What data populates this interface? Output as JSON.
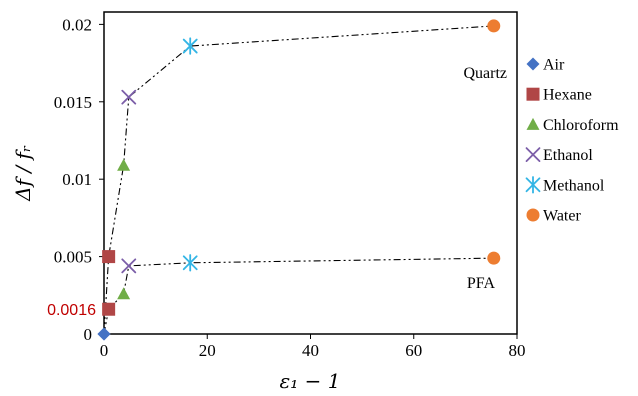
{
  "chart_data": {
    "type": "scatter",
    "title": "",
    "xlabel": "ε₁ − 1",
    "ylabel": "Δf / fᵣ",
    "xlim": [
      0,
      80
    ],
    "ylim": [
      0,
      0.022
    ],
    "xticks": [
      0,
      20,
      40,
      60,
      80
    ],
    "xtick_labels": [
      "0",
      "20",
      "40",
      "60",
      "80"
    ],
    "yticks": [
      0,
      0.005,
      0.01,
      0.015,
      0.02
    ],
    "ytick_labels": [
      "0",
      "0.005",
      "0.01",
      "0.015",
      "0.02"
    ],
    "grid": false,
    "legend_position": "right",
    "materials": [
      {
        "name": "Air",
        "x": 0,
        "marker": "diamond",
        "color": "#4472C4"
      },
      {
        "name": "Hexane",
        "x": 0.9,
        "marker": "square",
        "color": "#B04646"
      },
      {
        "name": "Chloroform",
        "x": 3.8,
        "marker": "triangle",
        "color": "#70AD47"
      },
      {
        "name": "Ethanol",
        "x": 4.8,
        "marker": "x",
        "color": "#7B5EA8"
      },
      {
        "name": "Methanol",
        "x": 16.7,
        "marker": "asterisk",
        "color": "#33B5E5"
      },
      {
        "name": "Water",
        "x": 75.5,
        "marker": "circle",
        "color": "#ED7D31"
      }
    ],
    "series": [
      {
        "name": "Quartz",
        "values": [
          0,
          0.005,
          0.0109,
          0.0153,
          0.0186,
          0.0199
        ]
      },
      {
        "name": "PFA",
        "values": [
          0,
          0.0016,
          0.0026,
          0.0044,
          0.0046,
          0.0049
        ]
      }
    ],
    "annotations": [
      {
        "text": "0.0016",
        "y": 0.0016,
        "color": "#C00000"
      }
    ]
  }
}
